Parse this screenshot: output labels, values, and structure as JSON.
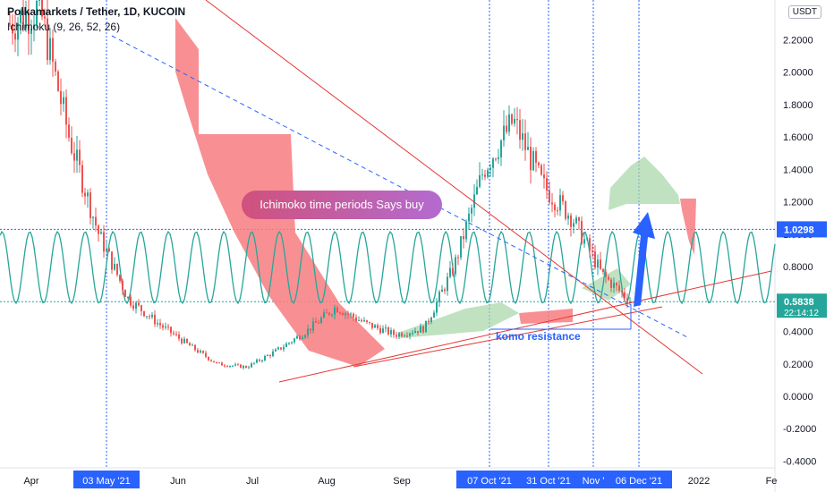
{
  "header": {
    "title": "Polkamarkets / Tether, 1D, KUCOIN",
    "indicator": "Ichimoku (9, 26, 52, 26)",
    "currency": "USDT"
  },
  "chart_data": {
    "type": "line",
    "title": "Polkamarkets / Tether, 1D, KUCOIN",
    "y_ticks": [
      "2.2000",
      "2.0000",
      "1.8000",
      "1.6000",
      "1.4000",
      "1.2000",
      "1.0000",
      "0.8000",
      "0.6000",
      "0.4000",
      "0.2000",
      "0.0000",
      "-0.2000",
      "-0.4000"
    ],
    "ylim": [
      -0.45,
      2.5
    ],
    "x_ticks": [
      "Apr",
      "03 May '21",
      "Jun",
      "Jul",
      "Aug",
      "Sep",
      "07 Oct '21",
      "31 Oct '21",
      "Nov '",
      "06 Dec '21",
      "2022",
      "Fe"
    ],
    "highlighted_dates": [
      "03 May '21",
      "07 Oct '21",
      "31 Oct '21",
      "Nov '",
      "06 Dec '21"
    ],
    "price_labels": [
      {
        "value": 1.0298,
        "text": "1.0298",
        "color": "#2962ff"
      },
      {
        "value": 0.5838,
        "text": "0.5838",
        "color": "#26a69a"
      }
    ],
    "countdown": "22:14:12",
    "annotations": {
      "bubble": "Ichimoko time periods Says buy",
      "komo": "komo resistance"
    },
    "series": [
      {
        "name": "Price",
        "values": [
          2.3,
          2.4,
          1.6,
          1.0,
          0.6,
          0.45,
          0.32,
          0.2,
          0.18,
          0.28,
          0.4,
          0.55,
          0.45,
          0.38,
          0.42,
          0.8,
          1.4,
          1.7,
          1.3,
          1.1,
          0.75,
          0.58
        ]
      }
    ],
    "colors": {
      "cloud_red": "#f77c80",
      "cloud_green": "#a5d6a7",
      "sine": "#26a69a",
      "trend": "#e53935",
      "dashed": "#2962ff",
      "up": "#26a69a",
      "down": "#ef5350"
    }
  }
}
